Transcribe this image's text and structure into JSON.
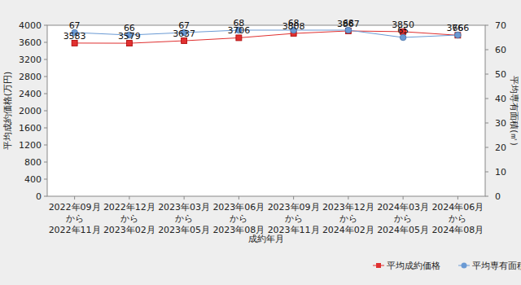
{
  "chart_data": {
    "type": "line",
    "x_label": "成約年月",
    "y_label": "平均成約価格(万円)",
    "y2_label": "平均専有面積(㎡)",
    "categories": [
      "2022年09月\nから\n2022年11月",
      "2022年12月\nから\n2023年02月",
      "2023年03月\nから\n2023年05月",
      "2023年06月\nから\n2023年08月",
      "2023年09月\nから\n2023年11月",
      "2023年12月\nから\n2024年02月",
      "2024年03月\nから\n2024年05月",
      "2024年06月\nから\n2024年08月"
    ],
    "series": [
      {
        "name": "平均成約価格",
        "color": "#e03030",
        "marker": "square",
        "values": [
          3583,
          3579,
          3637,
          3706,
          3808,
          3867,
          3850,
          3766
        ]
      },
      {
        "name": "平均専有面積",
        "color": "#6a9ad4",
        "marker": "circle",
        "axis": "y2",
        "values": [
          67,
          66,
          67,
          68,
          68,
          68,
          65,
          66
        ]
      }
    ],
    "ylim": [
      0,
      4000
    ],
    "yticks": [
      0,
      400,
      800,
      1200,
      1600,
      2000,
      2400,
      2800,
      3200,
      3600,
      4000
    ],
    "y2lim": [
      0,
      70
    ],
    "y2ticks": [
      0,
      10,
      20,
      30,
      40,
      50,
      60,
      70
    ],
    "grid": false,
    "legend": "bottom-right",
    "data_labels": true
  }
}
